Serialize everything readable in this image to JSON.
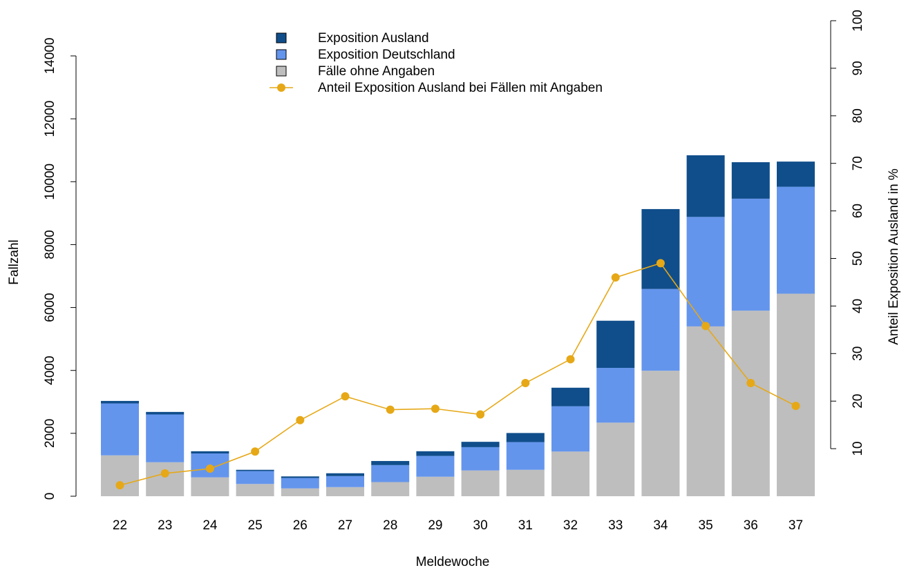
{
  "chart_data": {
    "type": "bar",
    "xlabel": "Meldewoche",
    "ylabel": "Fallzahl",
    "y2label": "Anteil Exposition Ausland in %",
    "categories": [
      "22",
      "23",
      "24",
      "25",
      "26",
      "27",
      "28",
      "29",
      "30",
      "31",
      "32",
      "33",
      "34",
      "35",
      "36",
      "37"
    ],
    "ylim": [
      0,
      14000
    ],
    "y_ticks": [
      "0",
      "2000",
      "4000",
      "6000",
      "8000",
      "10000",
      "12000",
      "14000"
    ],
    "y2lim": [
      0,
      100
    ],
    "y2_ticks": [
      "10",
      "20",
      "30",
      "40",
      "50",
      "60",
      "70",
      "80",
      "90",
      "100"
    ],
    "series": [
      {
        "name": "Fälle ohne Angaben",
        "color": "#bebebe",
        "values": [
          1300,
          1080,
          600,
          390,
          250,
          290,
          450,
          620,
          820,
          840,
          1420,
          2340,
          3990,
          5400,
          5900,
          6440
        ]
      },
      {
        "name": "Exposition Deutschland",
        "color": "#6495ed",
        "values": [
          1650,
          1520,
          760,
          410,
          330,
          350,
          540,
          660,
          740,
          880,
          1440,
          1740,
          2600,
          3480,
          3560,
          3400
        ]
      },
      {
        "name": "Exposition Ausland",
        "color": "#104e8b",
        "values": [
          80,
          80,
          70,
          40,
          50,
          90,
          130,
          150,
          170,
          290,
          590,
          1500,
          2540,
          1960,
          1160,
          800
        ]
      },
      {
        "name": "Anteil Exposition Ausland bei Fällen mit Angaben",
        "color": "#e6a817",
        "axis": "y2",
        "type": "line",
        "values": [
          2.3,
          4.8,
          5.8,
          9.4,
          16,
          21,
          18.2,
          18.4,
          17.2,
          23.8,
          28.8,
          46,
          49,
          35.8,
          23.8,
          19
        ]
      }
    ],
    "legend": {
      "position": "top-center",
      "items": [
        {
          "label": "Exposition Ausland",
          "color": "#104e8b",
          "kind": "box"
        },
        {
          "label": "Exposition Deutschland",
          "color": "#6495ed",
          "kind": "box"
        },
        {
          "label": "Fälle ohne Angaben",
          "color": "#bebebe",
          "kind": "box"
        },
        {
          "label": "Anteil Exposition Ausland bei Fällen mit Angaben",
          "color": "#e6a817",
          "kind": "line"
        }
      ]
    },
    "grid": false
  }
}
